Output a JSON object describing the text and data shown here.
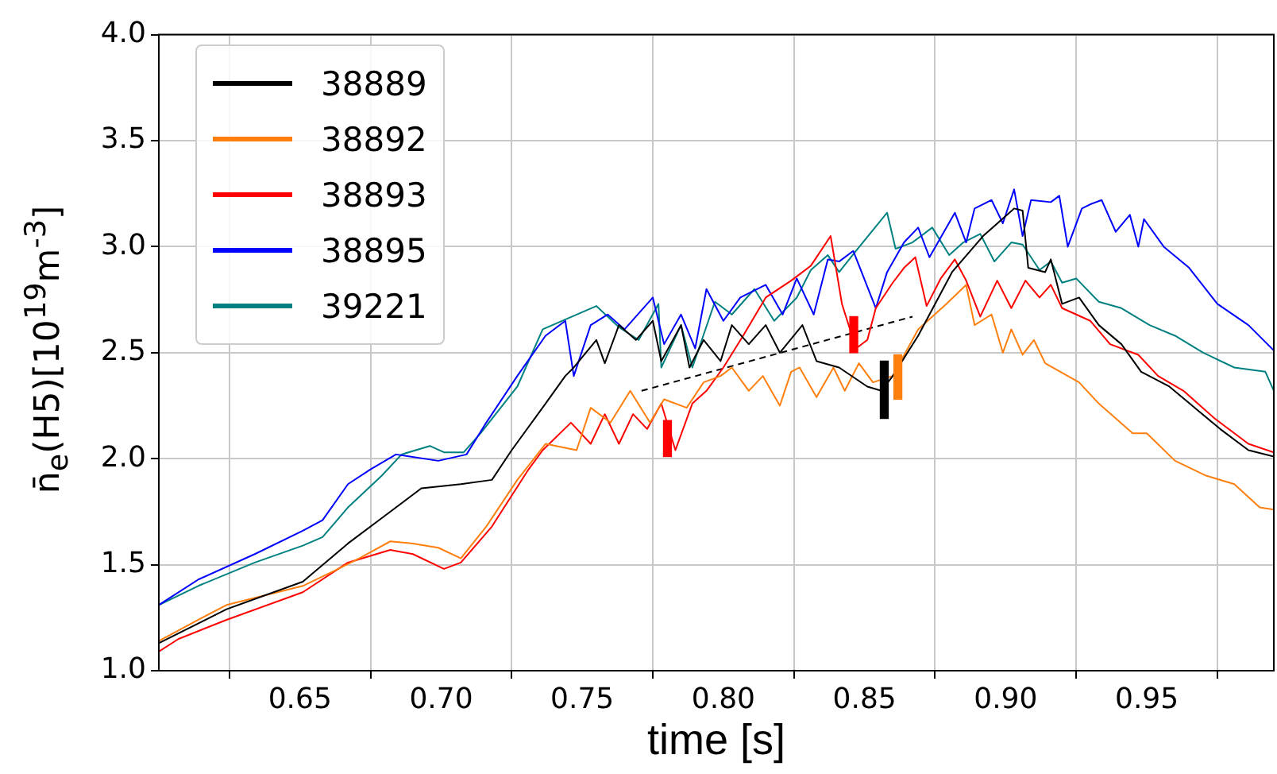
{
  "chart_data": {
    "type": "line",
    "xlabel": "time [s]",
    "ylabel": "n̄$_{e}$(H5)[10$^{19}$m$^{-3}$]",
    "xlim": [
      0.6,
      0.995
    ],
    "ylim": [
      1.0,
      4.0
    ],
    "xticks": [
      0.65,
      {
        "value": 0.7,
        "label": "0.70"
      },
      0.75,
      {
        "value": 0.8,
        "label": "0.80"
      },
      0.85,
      {
        "value": 0.9,
        "label": "0.90"
      },
      0.95
    ],
    "yticks": [
      {
        "value": 1,
        "label": "1.0"
      },
      1.5,
      {
        "value": 2,
        "label": "2.0"
      },
      2.5,
      {
        "value": 3,
        "label": "3.0"
      },
      3.5,
      {
        "value": 4,
        "label": "4.0"
      }
    ],
    "grid": true,
    "legend": "top left",
    "series": [
      {
        "name": "38889",
        "color": "#000000",
        "x": [
          0.6,
          0.624,
          0.651,
          0.667,
          0.68,
          0.693,
          0.707,
          0.718,
          0.725,
          0.737,
          0.744,
          0.747,
          0.755,
          0.758,
          0.763,
          0.769,
          0.775,
          0.778,
          0.785,
          0.788,
          0.793,
          0.799,
          0.803,
          0.809,
          0.815,
          0.82,
          0.828,
          0.833,
          0.841,
          0.851,
          0.856,
          0.86,
          0.869,
          0.881,
          0.892,
          0.903,
          0.906,
          0.908,
          0.914,
          0.916,
          0.92,
          0.926,
          0.933,
          0.941,
          0.948,
          0.958,
          0.967,
          0.976,
          0.986,
          0.995
        ],
        "values": [
          1.13,
          1.29,
          1.42,
          1.6,
          1.73,
          1.86,
          1.88,
          1.9,
          2.04,
          2.26,
          2.39,
          2.43,
          2.56,
          2.45,
          2.63,
          2.56,
          2.65,
          2.46,
          2.63,
          2.43,
          2.56,
          2.46,
          2.63,
          2.54,
          2.63,
          2.5,
          2.63,
          2.46,
          2.43,
          2.34,
          2.32,
          2.39,
          2.58,
          2.88,
          3.05,
          3.18,
          3.17,
          2.9,
          2.88,
          2.94,
          2.73,
          2.76,
          2.63,
          2.54,
          2.41,
          2.34,
          2.24,
          2.14,
          2.04,
          2.01
        ]
      },
      {
        "name": "38892",
        "color": "#ff7f0e",
        "x": [
          0.6,
          0.614,
          0.624,
          0.651,
          0.662,
          0.671,
          0.682,
          0.69,
          0.699,
          0.707,
          0.716,
          0.727,
          0.737,
          0.748,
          0.753,
          0.76,
          0.767,
          0.774,
          0.779,
          0.787,
          0.793,
          0.799,
          0.803,
          0.809,
          0.814,
          0.82,
          0.824,
          0.827,
          0.833,
          0.839,
          0.843,
          0.848,
          0.853,
          0.86,
          0.869,
          0.879,
          0.886,
          0.889,
          0.895,
          0.899,
          0.902,
          0.906,
          0.91,
          0.914,
          0.926,
          0.933,
          0.945,
          0.95,
          0.96,
          0.971,
          0.981,
          0.99,
          0.995
        ],
        "values": [
          1.14,
          1.24,
          1.31,
          1.4,
          1.47,
          1.53,
          1.61,
          1.6,
          1.58,
          1.53,
          1.68,
          1.9,
          2.07,
          2.04,
          2.24,
          2.17,
          2.32,
          2.17,
          2.28,
          2.24,
          2.36,
          2.39,
          2.43,
          2.32,
          2.39,
          2.25,
          2.41,
          2.43,
          2.29,
          2.43,
          2.32,
          2.45,
          2.36,
          2.39,
          2.61,
          2.73,
          2.82,
          2.63,
          2.68,
          2.5,
          2.61,
          2.49,
          2.56,
          2.45,
          2.36,
          2.26,
          2.12,
          2.12,
          1.99,
          1.92,
          1.88,
          1.77,
          1.76
        ]
      },
      {
        "name": "38893",
        "color": "#ff0000",
        "x": [
          0.6,
          0.607,
          0.624,
          0.651,
          0.667,
          0.682,
          0.69,
          0.701,
          0.707,
          0.718,
          0.731,
          0.736,
          0.746,
          0.753,
          0.758,
          0.763,
          0.768,
          0.773,
          0.778,
          0.783,
          0.789,
          0.794,
          0.8,
          0.807,
          0.815,
          0.824,
          0.831,
          0.838,
          0.842,
          0.847,
          0.851,
          0.854,
          0.86,
          0.864,
          0.868,
          0.872,
          0.877,
          0.882,
          0.886,
          0.891,
          0.897,
          0.902,
          0.907,
          0.912,
          0.916,
          0.92,
          0.93,
          0.937,
          0.947,
          0.954,
          0.963,
          0.974,
          0.986,
          0.995
        ],
        "values": [
          1.09,
          1.15,
          1.24,
          1.37,
          1.51,
          1.57,
          1.55,
          1.48,
          1.51,
          1.68,
          1.95,
          2.04,
          2.17,
          2.07,
          2.21,
          2.07,
          2.21,
          2.14,
          2.26,
          2.04,
          2.26,
          2.32,
          2.43,
          2.58,
          2.76,
          2.84,
          2.91,
          3.05,
          2.73,
          2.52,
          2.56,
          2.71,
          2.83,
          2.9,
          2.95,
          2.72,
          2.85,
          2.94,
          2.84,
          2.67,
          2.84,
          2.71,
          2.84,
          2.76,
          2.82,
          2.71,
          2.65,
          2.54,
          2.49,
          2.39,
          2.32,
          2.19,
          2.07,
          2.03
        ]
      },
      {
        "name": "38895",
        "color": "#0000ff",
        "x": [
          0.6,
          0.614,
          0.634,
          0.651,
          0.658,
          0.667,
          0.675,
          0.684,
          0.699,
          0.709,
          0.716,
          0.727,
          0.737,
          0.744,
          0.747,
          0.753,
          0.759,
          0.765,
          0.775,
          0.779,
          0.785,
          0.79,
          0.794,
          0.8,
          0.806,
          0.815,
          0.821,
          0.826,
          0.832,
          0.837,
          0.841,
          0.846,
          0.854,
          0.858,
          0.864,
          0.869,
          0.873,
          0.882,
          0.886,
          0.889,
          0.895,
          0.899,
          0.903,
          0.906,
          0.909,
          0.916,
          0.919,
          0.922,
          0.927,
          0.93,
          0.934,
          0.939,
          0.944,
          0.947,
          0.949,
          0.956,
          0.965,
          0.975,
          0.986,
          0.995
        ],
        "values": [
          1.31,
          1.43,
          1.55,
          1.66,
          1.71,
          1.88,
          1.95,
          2.02,
          1.99,
          2.02,
          2.17,
          2.39,
          2.58,
          2.65,
          2.39,
          2.63,
          2.68,
          2.61,
          2.76,
          2.54,
          2.68,
          2.52,
          2.8,
          2.65,
          2.76,
          2.82,
          2.68,
          2.85,
          2.68,
          2.94,
          2.93,
          2.98,
          2.71,
          2.88,
          3.02,
          3.09,
          2.95,
          3.16,
          3.02,
          3.18,
          3.22,
          3.11,
          3.27,
          3.05,
          3.22,
          3.21,
          3.24,
          3.0,
          3.18,
          3.2,
          3.22,
          3.07,
          3.15,
          3.0,
          3.13,
          3.0,
          2.9,
          2.73,
          2.63,
          2.51
        ]
      },
      {
        "name": "39221",
        "color": "#008080",
        "x": [
          0.6,
          0.614,
          0.634,
          0.651,
          0.658,
          0.667,
          0.679,
          0.686,
          0.696,
          0.701,
          0.708,
          0.714,
          0.727,
          0.736,
          0.755,
          0.763,
          0.77,
          0.777,
          0.778,
          0.785,
          0.789,
          0.797,
          0.803,
          0.811,
          0.818,
          0.826,
          0.831,
          0.837,
          0.841,
          0.847,
          0.858,
          0.861,
          0.867,
          0.874,
          0.88,
          0.885,
          0.891,
          0.896,
          0.902,
          0.906,
          0.912,
          0.916,
          0.92,
          0.925,
          0.933,
          0.941,
          0.951,
          0.96,
          0.97,
          0.981,
          0.992,
          0.995
        ],
        "values": [
          1.31,
          1.4,
          1.51,
          1.59,
          1.63,
          1.77,
          1.92,
          2.02,
          2.06,
          2.03,
          2.03,
          2.12,
          2.34,
          2.61,
          2.72,
          2.62,
          2.56,
          2.73,
          2.43,
          2.63,
          2.43,
          2.74,
          2.68,
          2.8,
          2.65,
          2.76,
          2.89,
          2.96,
          2.88,
          2.98,
          3.16,
          2.99,
          3.02,
          3.09,
          2.96,
          3.02,
          3.06,
          2.93,
          3.02,
          3.01,
          2.89,
          2.93,
          2.83,
          2.85,
          2.74,
          2.71,
          2.63,
          2.58,
          2.5,
          2.43,
          2.41,
          2.32
        ]
      },
      {
        "color": "#000000",
        "line_style": "dashed",
        "x": [
          0.771,
          0.867
        ],
        "values": [
          2.32,
          2.67
        ]
      },
      {
        "type": "bar",
        "color": "#ff0000",
        "x": [
          0.783,
          0.849
        ],
        "base": [
          2.01,
          2.5
        ],
        "values": [
          0.17,
          0.17
        ]
      },
      {
        "type": "bar",
        "color": "#000000",
        "x": [
          0.857
        ],
        "base": [
          2.19
        ],
        "values": [
          0.27
        ]
      },
      {
        "type": "bar",
        "color": "#ff7f0e",
        "x": [
          0.859
        ],
        "base": [
          2.28
        ],
        "values": [
          0.21
        ]
      }
    ]
  }
}
